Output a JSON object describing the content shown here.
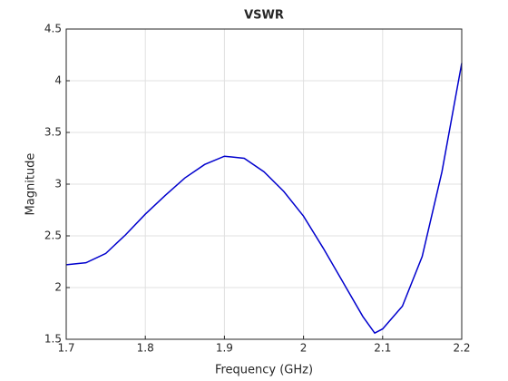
{
  "chart_data": {
    "type": "line",
    "title": "VSWR",
    "xlabel": "Frequency (GHz)",
    "ylabel": "Magnitude",
    "x": [
      1.7,
      1.725,
      1.75,
      1.775,
      1.8,
      1.825,
      1.85,
      1.875,
      1.9,
      1.925,
      1.95,
      1.975,
      2.0,
      2.025,
      2.05,
      2.075,
      2.09,
      2.1,
      2.125,
      2.15,
      2.175,
      2.2
    ],
    "series": [
      {
        "color": "#0000cd",
        "values": [
          2.22,
          2.24,
          2.33,
          2.51,
          2.71,
          2.89,
          3.06,
          3.19,
          3.27,
          3.25,
          3.12,
          2.93,
          2.69,
          2.38,
          2.05,
          1.72,
          1.56,
          1.6,
          1.82,
          2.3,
          3.12,
          4.17
        ]
      }
    ],
    "xlim": [
      1.7,
      2.2
    ],
    "xticks": [
      1.7,
      1.8,
      1.9,
      2,
      2.1,
      2.2
    ],
    "ylim": [
      1.5,
      4.5
    ],
    "yticks": [
      1.5,
      2,
      2.5,
      3,
      3.5,
      4,
      4.5
    ],
    "grid": true
  }
}
